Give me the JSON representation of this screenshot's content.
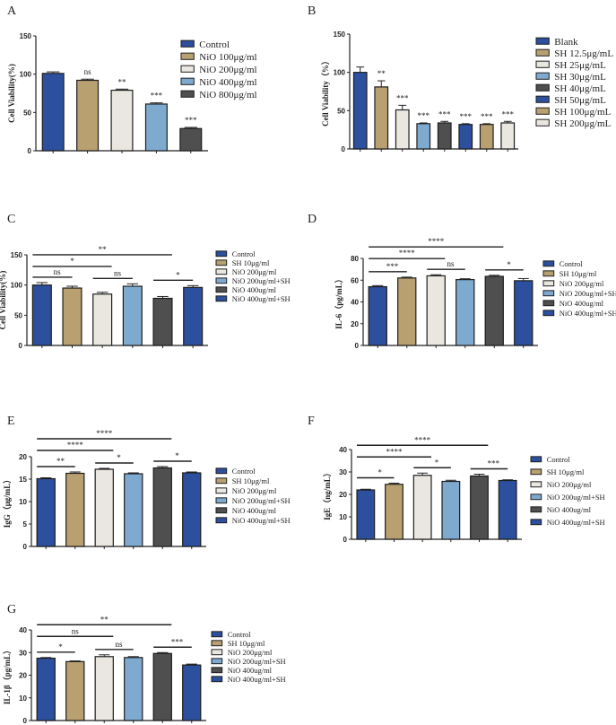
{
  "palette": {
    "blue": "#2c4f9e",
    "tan": "#b8a070",
    "cream": "#e9e7df",
    "lightblue": "#7eaad0",
    "darkgray": "#4f4f4f",
    "outline": "#1e1e1e"
  },
  "chart_data": [
    {
      "panel": "A",
      "type": "bar",
      "ylabel": "Cell Viability(%)",
      "ylim": [
        0,
        150
      ],
      "yticks": [
        0,
        50,
        100,
        150
      ],
      "categories": [
        "Control",
        "NiO 100μg/ml",
        "NiO 200μg/ml",
        "NiO 400μg/ml",
        "NiO 800μg/ml"
      ],
      "values": [
        101,
        92,
        79,
        61,
        29
      ],
      "errors": [
        2,
        1.5,
        1.5,
        1.5,
        1.5
      ],
      "colors": [
        "blue",
        "tan",
        "cream",
        "lightblue",
        "darkgray"
      ],
      "bar_labels": [
        "",
        "ns",
        "**",
        "***",
        "***"
      ],
      "brackets": []
    },
    {
      "panel": "B",
      "type": "bar",
      "ylabel": "Cell Viability（%）",
      "ylim": [
        0,
        150
      ],
      "yticks": [
        0,
        50,
        100,
        150
      ],
      "categories": [
        "Blank",
        "SH 12.5μg/mL",
        "SH 25μg/mL",
        "SH 30μg/mL",
        "SH 40μg/mL",
        "SH 50μg/mL",
        "SH 100μg/mL",
        "SH 200μg/mL"
      ],
      "values": [
        100,
        81,
        51,
        33,
        34,
        32,
        32,
        34
      ],
      "errors": [
        7,
        8,
        6,
        1,
        2,
        1,
        1,
        2
      ],
      "colors": [
        "blue",
        "tan",
        "cream",
        "lightblue",
        "darkgray",
        "blue",
        "tan",
        "cream"
      ],
      "bar_labels": [
        "",
        "**",
        "***",
        "***",
        "***",
        "***",
        "***",
        "***"
      ],
      "brackets": []
    },
    {
      "panel": "C",
      "type": "bar",
      "ylabel": "Cell Viability(%)",
      "ylim": [
        0,
        150
      ],
      "yticks": [
        0,
        50,
        100,
        150
      ],
      "categories": [
        "Control",
        "SH 10μg/ml",
        "NiO 200μg/ml",
        "NiO 200ug/ml+SH",
        "NiO 400ug/ml",
        "NiO 400ug/ml+SH"
      ],
      "values": [
        100,
        95,
        85,
        98,
        78,
        96
      ],
      "errors": [
        4,
        3,
        3,
        4,
        3,
        3
      ],
      "colors": [
        "blue",
        "tan",
        "cream",
        "lightblue",
        "darkgray",
        "blue"
      ],
      "bar_labels": [],
      "brackets": [
        {
          "from": 0,
          "to": 1,
          "label": "ns"
        },
        {
          "from": 0,
          "to": 2,
          "label": "*"
        },
        {
          "from": 0,
          "to": 4,
          "label": "**"
        },
        {
          "from": 2,
          "to": 3,
          "label": "ns"
        },
        {
          "from": 4,
          "to": 5,
          "label": "*"
        }
      ]
    },
    {
      "panel": "D",
      "type": "bar",
      "ylabel": "IL-6（pg/mL）",
      "ylim": [
        0,
        80
      ],
      "yticks": [
        0,
        20,
        40,
        60,
        80
      ],
      "categories": [
        "Control",
        "SH 10μg/ml",
        "NiO 200μg/ml",
        "NiO 200ug/ml+SH",
        "NiO 400ug/ml",
        "NiO 400ug/ml+SH"
      ],
      "values": [
        54,
        62,
        64,
        60.5,
        63.5,
        59.5
      ],
      "errors": [
        1,
        0.8,
        1,
        0.8,
        1,
        2
      ],
      "colors": [
        "blue",
        "tan",
        "cream",
        "lightblue",
        "darkgray",
        "blue"
      ],
      "bar_labels": [],
      "brackets": [
        {
          "from": 0,
          "to": 1,
          "label": "***"
        },
        {
          "from": 0,
          "to": 2,
          "label": "****"
        },
        {
          "from": 0,
          "to": 4,
          "label": "****"
        },
        {
          "from": 2,
          "to": 3,
          "label": "ns"
        },
        {
          "from": 4,
          "to": 5,
          "label": "*"
        }
      ]
    },
    {
      "panel": "E",
      "type": "bar",
      "ylabel": "IgG（μg/mL）",
      "ylim": [
        0,
        20
      ],
      "yticks": [
        0,
        5,
        10,
        15,
        20
      ],
      "categories": [
        "Control",
        "SH 10μg/ml",
        "NiO 200μg/ml",
        "NiO 200ug/ml+SH",
        "NiO 400ug/ml",
        "NiO 400ug/ml+SH"
      ],
      "values": [
        15.1,
        16.3,
        17.2,
        16.2,
        17.5,
        16.4
      ],
      "errors": [
        0.2,
        0.3,
        0.2,
        0.2,
        0.3,
        0.2
      ],
      "colors": [
        "blue",
        "tan",
        "cream",
        "lightblue",
        "darkgray",
        "blue"
      ],
      "bar_labels": [],
      "brackets": [
        {
          "from": 0,
          "to": 1,
          "label": "**"
        },
        {
          "from": 0,
          "to": 2,
          "label": "****"
        },
        {
          "from": 0,
          "to": 4,
          "label": "****"
        },
        {
          "from": 2,
          "to": 3,
          "label": "*"
        },
        {
          "from": 4,
          "to": 5,
          "label": "*"
        }
      ]
    },
    {
      "panel": "F",
      "type": "bar",
      "ylabel": "IgE（ng/mL）",
      "ylim": [
        0,
        40
      ],
      "yticks": [
        0,
        10,
        20,
        30,
        40
      ],
      "categories": [
        "Control",
        "SH 10μg/ml",
        "NiO 200μg/ml",
        "NiO 200ug/ml+SH",
        "NiO 400ug/ml",
        "NiO 400ug/ml+SH"
      ],
      "values": [
        22,
        24.5,
        28.5,
        25.8,
        28.2,
        26.2
      ],
      "errors": [
        0.3,
        0.5,
        1,
        0.5,
        0.8,
        0.3
      ],
      "colors": [
        "blue",
        "tan",
        "cream",
        "lightblue",
        "darkgray",
        "blue"
      ],
      "bar_labels": [],
      "brackets": [
        {
          "from": 0,
          "to": 1,
          "label": "*"
        },
        {
          "from": 0,
          "to": 2,
          "label": "****"
        },
        {
          "from": 0,
          "to": 4,
          "label": "****"
        },
        {
          "from": 2,
          "to": 3,
          "label": "*"
        },
        {
          "from": 4,
          "to": 5,
          "label": "***"
        }
      ]
    },
    {
      "panel": "G",
      "type": "bar",
      "ylabel": "IL-1β（pg/mL）",
      "ylim": [
        0,
        40
      ],
      "yticks": [
        0,
        10,
        20,
        30,
        40
      ],
      "categories": [
        "Control",
        "SH 10μg/ml",
        "NiO 200μg/ml",
        "NiO 200ug/ml+SH",
        "NiO 400ug/ml",
        "NiO 400ug/ml+SH"
      ],
      "values": [
        27.5,
        26,
        28.2,
        27.8,
        29.6,
        24.5
      ],
      "errors": [
        0.3,
        0.3,
        0.8,
        0.4,
        0.4,
        0.4
      ],
      "colors": [
        "blue",
        "tan",
        "cream",
        "lightblue",
        "darkgray",
        "blue"
      ],
      "bar_labels": [],
      "brackets": [
        {
          "from": 0,
          "to": 1,
          "label": "*"
        },
        {
          "from": 0,
          "to": 2,
          "label": "ns"
        },
        {
          "from": 0,
          "to": 4,
          "label": "**"
        },
        {
          "from": 2,
          "to": 3,
          "label": "ns"
        },
        {
          "from": 4,
          "to": 5,
          "label": "***"
        }
      ]
    }
  ]
}
